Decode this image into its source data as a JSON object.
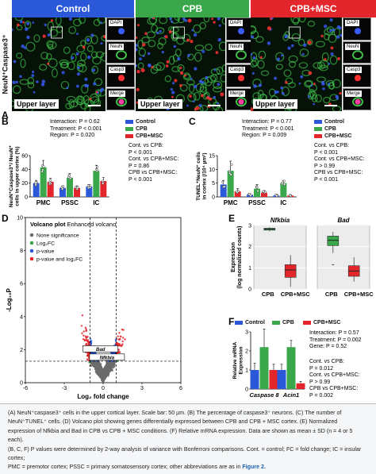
{
  "panel_letters": {
    "a": "A",
    "b": "B",
    "c": "C",
    "d": "D",
    "e": "E",
    "f": "F"
  },
  "panel_a": {
    "headers": [
      {
        "label": "Control",
        "color": "#2b57d9"
      },
      {
        "label": "CPB",
        "color": "#3aa84a"
      },
      {
        "label": "CPB+MSC",
        "color": "#e3262c"
      }
    ],
    "side_label": "NeuN⁺Caspase3⁺",
    "upper_label": "Upper layer",
    "thumb_labels": [
      "DAPI",
      "NeuN",
      "Casp3",
      "Merge"
    ]
  },
  "colors": {
    "control": "#2b57d9",
    "cpb": "#3aa84a",
    "msc": "#e3262c"
  },
  "panel_b": {
    "stats": [
      "Interaction: P = 0.62",
      "Treatment: P < 0.001",
      "Region: P = 0.020"
    ],
    "comparisons": [
      "Cont. vs CPB:",
      "P < 0.001",
      "Cont. vs CPB+MSC:",
      "P = 0.86",
      "CPB vs CPB+MSC:",
      "P < 0.001"
    ],
    "legend": [
      "Control",
      "CPB",
      "CPB+MSC"
    ]
  },
  "panel_c": {
    "stats": [
      "Interaction: P = 0.77",
      "Treatment: P < 0.001",
      "Region: P = 0.009"
    ],
    "comparisons": [
      "Cont. vs CPB:",
      "P < 0.001",
      "Cont. vs CPB+MSC:",
      "P > 0.99",
      "CPB vs CPB+MSC:",
      "P < 0.001"
    ],
    "legend": [
      "Control",
      "CPB",
      "CPB+MSC"
    ]
  },
  "panel_f": {
    "legend": [
      "Control",
      "CPB",
      "CPB+MSC"
    ],
    "stats": [
      "Interaction: P = 0.57",
      "Treatment: P = 0.002",
      "Gene: P = 0.52"
    ],
    "comparisons": [
      "Cont. vs CPB:",
      "P = 0.012",
      "Cont. vs CPB+MSC:",
      "P > 0.99",
      "CPB vs CPB+MSC:",
      "P = 0.002"
    ]
  },
  "chart_data": [
    {
      "id": "B",
      "type": "bar",
      "categories": [
        "PMC",
        "PSSC",
        "IC"
      ],
      "ylabel": "NeuN⁺Caspase3⁺/ NeuN⁺ cells in upper cortex (%)",
      "ylim": [
        0,
        60
      ],
      "yticks": [
        0,
        20,
        40,
        60
      ],
      "series": [
        {
          "name": "Control",
          "values": [
            20,
            13,
            15
          ],
          "errors": [
            4,
            3,
            3
          ]
        },
        {
          "name": "CPB",
          "values": [
            43,
            28,
            38
          ],
          "errors": [
            10,
            6,
            8
          ]
        },
        {
          "name": "CPB+MSC",
          "values": [
            22,
            13,
            23
          ],
          "errors": [
            5,
            3,
            5
          ]
        }
      ]
    },
    {
      "id": "C",
      "type": "bar",
      "categories": [
        "PMC",
        "PSSC",
        "IC"
      ],
      "ylabel": "TUNEL⁺NeuN⁺ cells in cortex (/10⁴ µm²)",
      "ylim": [
        0,
        15
      ],
      "yticks": [
        0,
        5,
        10,
        15
      ],
      "series": [
        {
          "name": "Control",
          "values": [
            4.5,
            0.8,
            0.5
          ],
          "errors": [
            1.5,
            0.4,
            0.3
          ]
        },
        {
          "name": "CPB",
          "values": [
            9.5,
            3.0,
            5.0
          ],
          "errors": [
            3.5,
            1.5,
            1.0
          ]
        },
        {
          "name": "CPB+MSC",
          "values": [
            2.0,
            1.5,
            0.5
          ],
          "errors": [
            1.0,
            0.8,
            0.3
          ]
        }
      ]
    },
    {
      "id": "D",
      "type": "scatter",
      "title": "Volcano plot",
      "subtitle": "Enhanced volcano",
      "xlabel": "Log₂ fold change",
      "ylabel": "-Log₁₀P",
      "xlim": [
        -6,
        6
      ],
      "ylim": [
        0,
        10
      ],
      "xticks": [
        -6,
        -3,
        0,
        3,
        6
      ],
      "yticks": [
        0,
        2,
        4,
        6,
        8,
        10
      ],
      "fc_threshold": 1,
      "p_threshold": 1.3,
      "legend": [
        {
          "label": "None significance",
          "color": "#6b6b6b"
        },
        {
          "label": "Log₂FC",
          "color": "#3aa84a"
        },
        {
          "label": "p-value",
          "color": "#2b57d9"
        },
        {
          "label": "p-value and log₂FC",
          "color": "#e3262c"
        }
      ],
      "labelled_genes": [
        {
          "name": "Bad",
          "x": -0.2,
          "y": 2.0
        },
        {
          "name": "Nfkbia",
          "x": 0.3,
          "y": 1.5
        }
      ]
    },
    {
      "id": "E",
      "type": "box",
      "ylabel": "Expression (log normalized counts)",
      "ylim": [
        0,
        3
      ],
      "yticks": [
        0,
        1,
        2,
        3
      ],
      "panels": [
        {
          "gene": "Nfkbia",
          "groups": [
            {
              "name": "CPB",
              "color": "#3aa84a",
              "q1": 2.78,
              "median": 2.83,
              "q3": 2.87,
              "min": 2.72,
              "max": 2.92
            },
            {
              "name": "CPB+MSC",
              "color": "#e3262c",
              "q1": 0.55,
              "median": 0.9,
              "q3": 1.15,
              "min": 0.1,
              "max": 1.6
            }
          ]
        },
        {
          "gene": "Bad",
          "groups": [
            {
              "name": "CPB",
              "color": "#3aa84a",
              "q1": 2.05,
              "median": 2.3,
              "q3": 2.5,
              "min": 1.7,
              "max": 2.7,
              "outlier": 1.15
            },
            {
              "name": "CPB+MSC",
              "color": "#e3262c",
              "q1": 0.6,
              "median": 0.85,
              "q3": 1.1,
              "min": 0.35,
              "max": 1.5
            }
          ]
        }
      ]
    },
    {
      "id": "F",
      "type": "bar",
      "categories": [
        "Caspase 8",
        "Acin1"
      ],
      "ylabel": "Relative mRNA Expression",
      "ylim": [
        0,
        3
      ],
      "yticks": [
        0,
        1,
        2,
        3
      ],
      "series": [
        {
          "name": "Control",
          "values": [
            1.0,
            1.0
          ],
          "errors": [
            0.35,
            0.3
          ]
        },
        {
          "name": "CPB",
          "values": [
            2.2,
            2.2
          ],
          "errors": [
            0.95,
            0.35
          ]
        },
        {
          "name": "CPB+MSC",
          "values": [
            1.0,
            0.3
          ],
          "errors": [
            0.3,
            0.1
          ]
        }
      ]
    }
  ],
  "caption": {
    "line1": "(A) NeuN⁺caspase3⁺ cells in the upper cortical layer. Scale bar: 50 µm. (B) The percentage of caspase3⁺ neurons. (C) The number of",
    "line2": "NeuN⁺TUNEL⁺ cells. (D) Volcano plot showing genes differentially expressed between CPB and CPB + MSC cortex. (E) Normalized",
    "line3": "expression of Nfkbia and Bad in CPB vs CPB + MSC conditions. (F) Relative mRNA expression. Data are shown as mean ± SD (n = 4 or 5 each).",
    "line4": "(B, C, F) P values were determined by 2-way analysis of variance with Bonferroni comparisons. Cont. = control; FC = fold change; IC = insular cortex;",
    "line5": "PMC = premotor cortex; PSSC = primary somatosensory cortex; other abbreviations are as in",
    "link": "Figure 2."
  }
}
